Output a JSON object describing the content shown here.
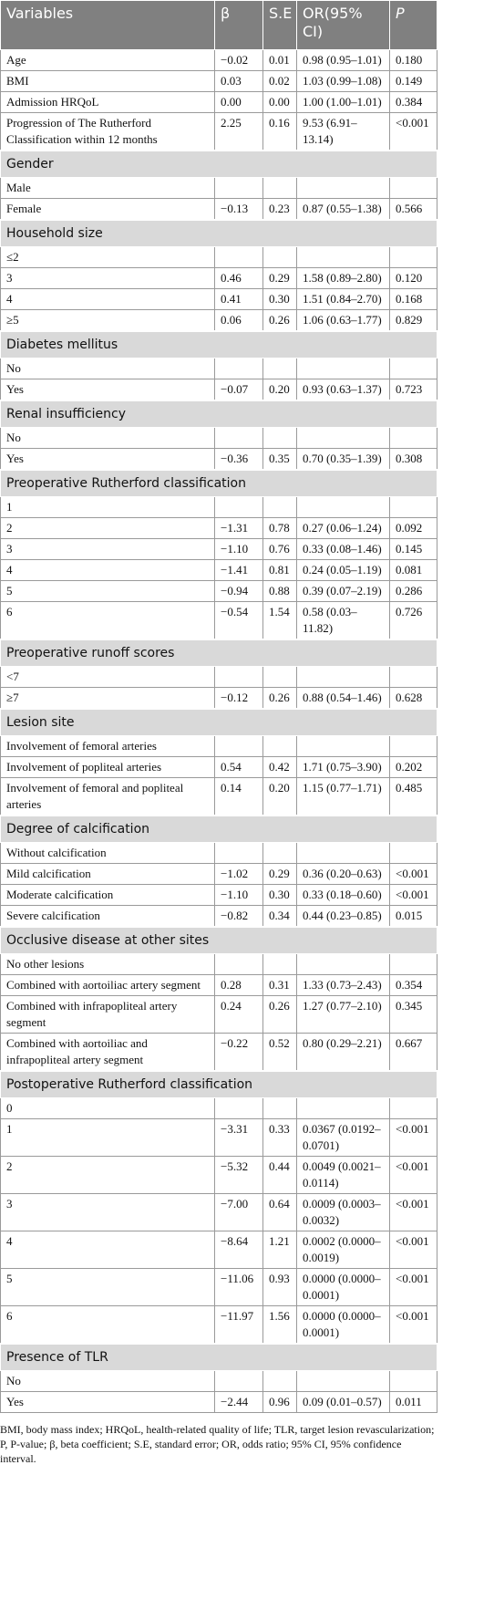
{
  "table": {
    "header": [
      "Variables",
      "β",
      "S.E",
      "OR(95% CI)",
      "P"
    ],
    "rows": [
      {
        "cells": [
          "Age",
          "−0.02",
          "0.01",
          "0.98 (0.95–1.01)",
          "0.180"
        ]
      },
      {
        "cells": [
          "BMI",
          "0.03",
          "0.02",
          "1.03 (0.99–1.08)",
          "0.149"
        ]
      },
      {
        "cells": [
          "Admission HRQoL",
          "0.00",
          "0.00",
          "1.00 (1.00–1.01)",
          "0.384"
        ]
      },
      {
        "cells": [
          "Progression of The Rutherford Classification within 12 months",
          "2.25",
          "0.16",
          "9.53 (6.91–13.14)",
          "<0.001"
        ]
      },
      {
        "section": "Gender"
      },
      {
        "cells": [
          "Male"
        ]
      },
      {
        "cells": [
          "Female",
          "−0.13",
          "0.23",
          "0.87 (0.55–1.38)",
          "0.566"
        ]
      },
      {
        "section": "Household size"
      },
      {
        "cells": [
          "≤2"
        ]
      },
      {
        "cells": [
          "3",
          "0.46",
          "0.29",
          "1.58 (0.89–2.80)",
          "0.120"
        ]
      },
      {
        "cells": [
          "4",
          "0.41",
          "0.30",
          "1.51 (0.84–2.70)",
          "0.168"
        ]
      },
      {
        "cells": [
          "≥5",
          "0.06",
          "0.26",
          "1.06 (0.63–1.77)",
          "0.829"
        ]
      },
      {
        "section": "Diabetes mellitus"
      },
      {
        "cells": [
          "No"
        ]
      },
      {
        "cells": [
          "Yes",
          "−0.07",
          "0.20",
          "0.93 (0.63–1.37)",
          "0.723"
        ]
      },
      {
        "section": "Renal insufficiency"
      },
      {
        "cells": [
          "No"
        ]
      },
      {
        "cells": [
          "Yes",
          "−0.36",
          "0.35",
          "0.70 (0.35–1.39)",
          "0.308"
        ]
      },
      {
        "section": "Preoperative Rutherford classification"
      },
      {
        "cells": [
          "1"
        ]
      },
      {
        "cells": [
          "2",
          "−1.31",
          "0.78",
          "0.27 (0.06–1.24)",
          "0.092"
        ]
      },
      {
        "cells": [
          "3",
          "−1.10",
          "0.76",
          "0.33 (0.08–1.46)",
          "0.145"
        ]
      },
      {
        "cells": [
          "4",
          "−1.41",
          "0.81",
          "0.24 (0.05–1.19)",
          "0.081"
        ]
      },
      {
        "cells": [
          "5",
          "−0.94",
          "0.88",
          "0.39 (0.07–2.19)",
          "0.286"
        ]
      },
      {
        "cells": [
          "6",
          "−0.54",
          "1.54",
          "0.58 (0.03–11.82)",
          "0.726"
        ]
      },
      {
        "section": "Preoperative runoff scores"
      },
      {
        "cells": [
          "<7"
        ]
      },
      {
        "cells": [
          "≥7",
          "−0.12",
          "0.26",
          "0.88 (0.54–1.46)",
          "0.628"
        ]
      },
      {
        "section": "Lesion site"
      },
      {
        "cells": [
          "Involvement of femoral arteries"
        ]
      },
      {
        "cells": [
          "Involvement of popliteal arteries",
          "0.54",
          "0.42",
          "1.71 (0.75–3.90)",
          "0.202"
        ]
      },
      {
        "cells": [
          "Involvement of femoral and popliteal arteries",
          "0.14",
          "0.20",
          "1.15 (0.77–1.71)",
          "0.485"
        ]
      },
      {
        "section": "Degree of calcification"
      },
      {
        "cells": [
          "Without calcification"
        ]
      },
      {
        "cells": [
          "Mild calcification",
          "−1.02",
          "0.29",
          "0.36 (0.20–0.63)",
          "<0.001"
        ]
      },
      {
        "cells": [
          "Moderate calcification",
          "−1.10",
          "0.30",
          "0.33 (0.18–0.60)",
          "<0.001"
        ]
      },
      {
        "cells": [
          "Severe calcification",
          "−0.82",
          "0.34",
          "0.44 (0.23–0.85)",
          "0.015"
        ]
      },
      {
        "section": "Occlusive disease at other sites"
      },
      {
        "cells": [
          "No other lesions"
        ]
      },
      {
        "cells": [
          "Combined with aortoiliac artery segment",
          "0.28",
          "0.31",
          "1.33 (0.73–2.43)",
          "0.354"
        ]
      },
      {
        "cells": [
          "Combined with infrapopliteal artery segment",
          "0.24",
          "0.26",
          "1.27 (0.77–2.10)",
          "0.345"
        ]
      },
      {
        "cells": [
          "Combined with aortoiliac and infrapopliteal artery segment",
          "−0.22",
          "0.52",
          "0.80 (0.29–2.21)",
          "0.667"
        ]
      },
      {
        "section": "Postoperative Rutherford classification"
      },
      {
        "cells": [
          "0"
        ]
      },
      {
        "cells": [
          "1",
          "−3.31",
          "0.33",
          "0.0367 (0.0192–0.0701)",
          "<0.001"
        ]
      },
      {
        "cells": [
          "2",
          "−5.32",
          "0.44",
          "0.0049 (0.0021–0.0114)",
          "<0.001"
        ]
      },
      {
        "cells": [
          "3",
          "−7.00",
          "0.64",
          "0.0009 (0.0003–0.0032)",
          "<0.001"
        ]
      },
      {
        "cells": [
          "4",
          "−8.64",
          "1.21",
          "0.0002 (0.0000–0.0019)",
          "<0.001"
        ]
      },
      {
        "cells": [
          "5",
          "−11.06",
          "0.93",
          "0.0000 (0.0000–0.0001)",
          "<0.001"
        ]
      },
      {
        "cells": [
          "6",
          "−11.97",
          "1.56",
          "0.0000 (0.0000–0.0001)",
          "<0.001"
        ]
      },
      {
        "section": "Presence of TLR"
      },
      {
        "cells": [
          "No"
        ]
      },
      {
        "cells": [
          "Yes",
          "−2.44",
          "0.96",
          "0.09 (0.01–0.57)",
          "0.011"
        ]
      }
    ],
    "footnote": "BMI, body mass index; HRQoL, health-related quality of life; TLR, target lesion revascularization; P, P-value; β, beta coefficient; S.E, standard error; OR, odds ratio; 95% CI, 95% confidence interval."
  }
}
